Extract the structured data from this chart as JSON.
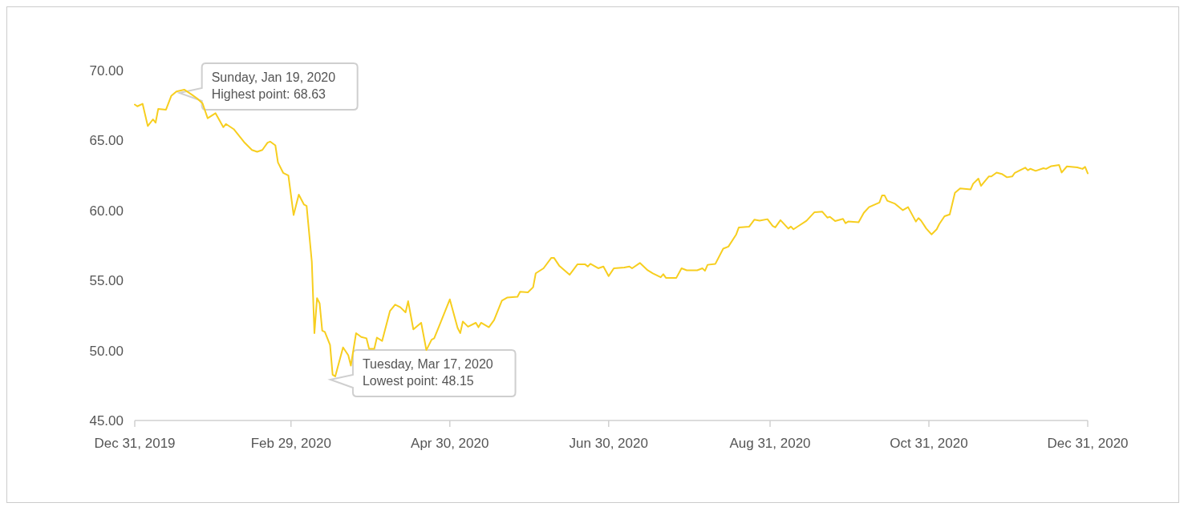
{
  "chart_data": {
    "type": "line",
    "x": [
      "2019-12-31",
      "2020-01-01",
      "2020-01-03",
      "2020-01-05",
      "2020-01-07",
      "2020-01-08",
      "2020-01-09",
      "2020-01-12",
      "2020-01-14",
      "2020-01-16",
      "2020-01-19",
      "2020-01-22",
      "2020-01-24",
      "2020-01-26",
      "2020-01-28",
      "2020-01-31",
      "2020-02-03",
      "2020-02-04",
      "2020-02-07",
      "2020-02-11",
      "2020-02-14",
      "2020-02-16",
      "2020-02-18",
      "2020-02-20",
      "2020-02-21",
      "2020-02-23",
      "2020-02-24",
      "2020-02-26",
      "2020-02-28",
      "2020-03-01",
      "2020-03-03",
      "2020-03-05",
      "2020-03-06",
      "2020-03-08",
      "2020-03-09",
      "2020-03-10",
      "2020-03-11",
      "2020-03-12",
      "2020-03-13",
      "2020-03-15",
      "2020-03-16",
      "2020-03-17",
      "2020-03-20",
      "2020-03-22",
      "2020-03-23",
      "2020-03-25",
      "2020-03-27",
      "2020-03-29",
      "2020-03-30",
      "2020-04-01",
      "2020-04-02",
      "2020-04-04",
      "2020-04-07",
      "2020-04-09",
      "2020-04-11",
      "2020-04-13",
      "2020-04-14",
      "2020-04-16",
      "2020-04-19",
      "2020-04-21",
      "2020-04-23",
      "2020-04-24",
      "2020-04-26",
      "2020-04-30",
      "2020-05-03",
      "2020-05-04",
      "2020-05-05",
      "2020-05-07",
      "2020-05-10",
      "2020-05-11",
      "2020-05-12",
      "2020-05-15",
      "2020-05-17",
      "2020-05-20",
      "2020-05-22",
      "2020-05-26",
      "2020-05-27",
      "2020-05-30",
      "2020-06-01",
      "2020-06-02",
      "2020-06-05",
      "2020-06-08",
      "2020-06-09",
      "2020-06-11",
      "2020-06-15",
      "2020-06-18",
      "2020-06-21",
      "2020-06-22",
      "2020-06-23",
      "2020-06-26",
      "2020-06-28",
      "2020-06-30",
      "2020-07-02",
      "2020-07-06",
      "2020-07-08",
      "2020-07-09",
      "2020-07-12",
      "2020-07-15",
      "2020-07-17",
      "2020-07-20",
      "2020-07-21",
      "2020-07-22",
      "2020-07-26",
      "2020-07-28",
      "2020-07-30",
      "2020-08-03",
      "2020-08-05",
      "2020-08-06",
      "2020-08-07",
      "2020-08-10",
      "2020-08-13",
      "2020-08-15",
      "2020-08-18",
      "2020-08-19",
      "2020-08-23",
      "2020-08-25",
      "2020-08-27",
      "2020-08-30",
      "2020-09-01",
      "2020-09-02",
      "2020-09-04",
      "2020-09-07",
      "2020-09-08",
      "2020-09-09",
      "2020-09-11",
      "2020-09-14",
      "2020-09-17",
      "2020-09-20",
      "2020-09-22",
      "2020-09-23",
      "2020-09-25",
      "2020-09-28",
      "2020-09-29",
      "2020-09-30",
      "2020-10-04",
      "2020-10-06",
      "2020-10-08",
      "2020-10-12",
      "2020-10-13",
      "2020-10-14",
      "2020-10-15",
      "2020-10-18",
      "2020-10-21",
      "2020-10-23",
      "2020-10-26",
      "2020-10-27",
      "2020-10-28",
      "2020-10-30",
      "2020-11-01",
      "2020-11-03",
      "2020-11-04",
      "2020-11-06",
      "2020-11-08",
      "2020-11-10",
      "2020-11-12",
      "2020-11-16",
      "2020-11-17",
      "2020-11-19",
      "2020-11-20",
      "2020-11-23",
      "2020-11-24",
      "2020-11-26",
      "2020-11-28",
      "2020-11-30",
      "2020-12-02",
      "2020-12-03",
      "2020-12-07",
      "2020-12-08",
      "2020-12-09",
      "2020-12-11",
      "2020-12-14",
      "2020-12-15",
      "2020-12-17",
      "2020-12-20",
      "2020-12-21",
      "2020-12-23",
      "2020-12-27",
      "2020-12-29",
      "2020-12-30",
      "2020-12-31"
    ],
    "series": [
      {
        "color": "#f7ce1f",
        "values": [
          67.57,
          67.44,
          67.62,
          66.03,
          66.51,
          66.27,
          67.25,
          67.2,
          68.18,
          68.5,
          68.63,
          68.26,
          68.0,
          67.66,
          66.59,
          66.95,
          65.95,
          66.18,
          65.81,
          64.88,
          64.32,
          64.19,
          64.32,
          64.84,
          64.92,
          64.65,
          63.43,
          62.69,
          62.5,
          59.68,
          61.13,
          60.42,
          60.33,
          56.34,
          51.24,
          53.74,
          53.37,
          51.42,
          51.33,
          50.4,
          48.27,
          48.15,
          50.22,
          49.66,
          48.92,
          51.24,
          50.96,
          50.87,
          50.12,
          50.12,
          50.92,
          50.68,
          52.81,
          53.28,
          53.09,
          52.72,
          53.52,
          51.51,
          51.98,
          50.03,
          50.77,
          50.87,
          51.79,
          53.65,
          51.61,
          51.24,
          52.07,
          51.7,
          51.98,
          51.66,
          51.98,
          51.66,
          52.17,
          53.56,
          53.78,
          53.84,
          54.2,
          54.15,
          54.52,
          55.51,
          55.87,
          56.62,
          56.62,
          56.06,
          55.41,
          56.15,
          56.15,
          56.0,
          56.19,
          55.87,
          56.0,
          55.31,
          55.87,
          55.93,
          56.0,
          55.87,
          56.25,
          55.73,
          55.51,
          55.23,
          55.45,
          55.19,
          55.19,
          55.87,
          55.73,
          55.73,
          55.87,
          55.69,
          56.12,
          56.19,
          57.27,
          57.42,
          58.29,
          58.79,
          58.85,
          59.35,
          59.27,
          59.38,
          58.9,
          58.79,
          59.31,
          58.71,
          58.85,
          58.66,
          58.9,
          59.27,
          59.87,
          59.92,
          59.49,
          59.55,
          59.25,
          59.4,
          59.09,
          59.21,
          59.16,
          59.83,
          60.24,
          60.57,
          61.07,
          61.07,
          60.7,
          60.48,
          60.02,
          60.24,
          59.21,
          59.46,
          59.27,
          58.71,
          58.29,
          58.66,
          59.03,
          59.59,
          59.72,
          61.26,
          61.58,
          61.5,
          61.91,
          62.28,
          61.76,
          62.43,
          62.43,
          62.71,
          62.61,
          62.37,
          62.43,
          62.69,
          63.06,
          62.87,
          62.98,
          62.83,
          63.02,
          62.97,
          63.17,
          63.25,
          62.71,
          63.15,
          63.08,
          62.97,
          63.12,
          62.65
        ]
      }
    ],
    "xlim": [
      "2019-12-31",
      "2020-12-31"
    ],
    "xticks": [
      {
        "value": "2019-12-31",
        "label": "Dec 31, 2019"
      },
      {
        "value": "2020-02-29",
        "label": "Feb 29, 2020"
      },
      {
        "value": "2020-04-30",
        "label": "Apr 30, 2020"
      },
      {
        "value": "2020-06-30",
        "label": "Jun 30, 2020"
      },
      {
        "value": "2020-08-31",
        "label": "Aug 31, 2020"
      },
      {
        "value": "2020-10-31",
        "label": "Oct 31, 2020"
      },
      {
        "value": "2020-12-31",
        "label": "Dec 31, 2020"
      }
    ],
    "ylim": [
      45,
      70
    ],
    "yticks": [
      {
        "value": 45,
        "label": "45.00"
      },
      {
        "value": 50,
        "label": "50.00"
      },
      {
        "value": 55,
        "label": "55.00"
      },
      {
        "value": 60,
        "label": "60.00"
      },
      {
        "value": 65,
        "label": "65.00"
      },
      {
        "value": 70,
        "label": "70.00"
      }
    ],
    "annotations": [
      {
        "text": "Sunday, Jan 19, 2020\nHighest point: 68.63",
        "x": "2020-01-19",
        "y": 68.63
      },
      {
        "text": "Tuesday, Mar 17, 2020\nLowest point: 48.15",
        "x": "2020-03-17",
        "y": 48.15
      }
    ]
  }
}
